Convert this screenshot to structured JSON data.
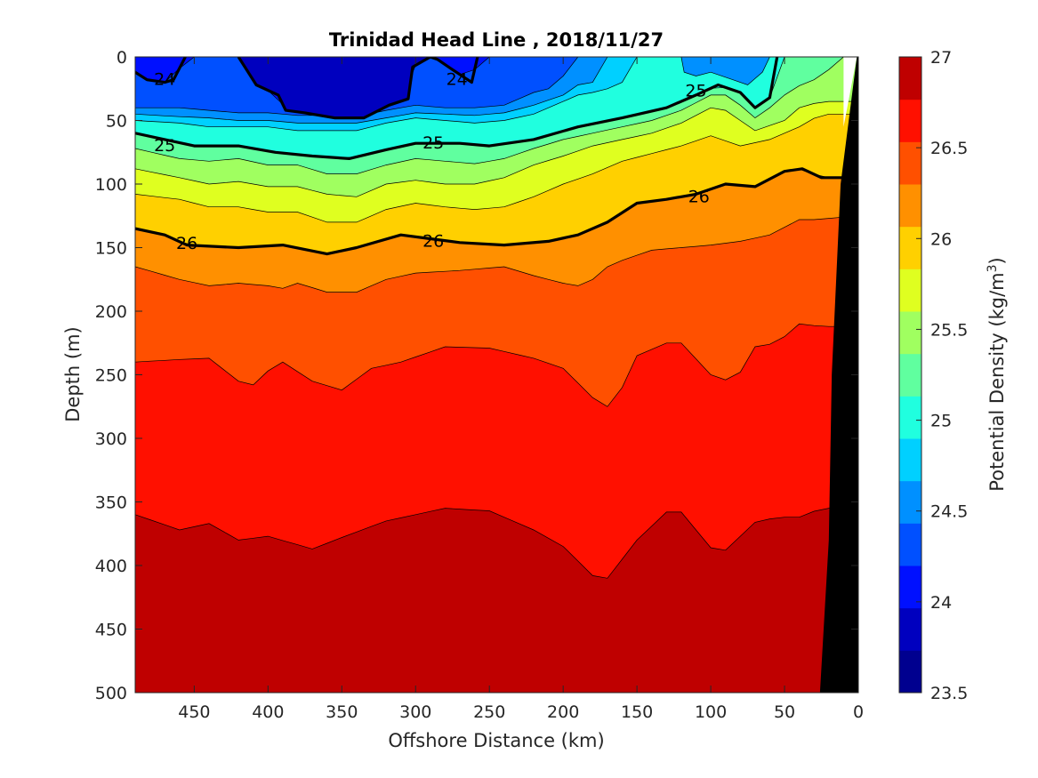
{
  "chart_data": {
    "type": "contour",
    "title": "Trinidad Head Line , 2018/11/27",
    "xlabel": "Offshore Distance (km)",
    "ylabel": "Depth (m)",
    "xlim": [
      490,
      0
    ],
    "ylim": [
      0,
      500
    ],
    "x_reversed": true,
    "y_reversed": true,
    "xticks": [
      "450",
      "400",
      "350",
      "300",
      "250",
      "200",
      "150",
      "100",
      "50",
      "0"
    ],
    "yticks": [
      "0",
      "50",
      "100",
      "150",
      "200",
      "250",
      "300",
      "350",
      "400",
      "450",
      "500"
    ],
    "colorbar": {
      "label_prefix": "Potential Density (kg/m",
      "label_sup": "3",
      "label_suffix": ")",
      "range": [
        23.5,
        27
      ],
      "tick_labels": [
        "27",
        "26.5",
        "26",
        "25.5",
        "25",
        "24.5",
        "24",
        "23.5"
      ],
      "levels": [
        23.5,
        23.75,
        24.0,
        24.25,
        24.5,
        24.75,
        25.0,
        25.25,
        25.5,
        25.75,
        26.0,
        26.25,
        26.5,
        26.75,
        27.0
      ],
      "colors": [
        "#00008f",
        "#0000bf",
        "#0010ff",
        "#0050ff",
        "#0090ff",
        "#00d0ff",
        "#20ffdf",
        "#60ff9f",
        "#a0ff60",
        "#dfff20",
        "#ffd000",
        "#ff9000",
        "#ff5000",
        "#ff1000",
        "#bf0000"
      ]
    },
    "contour_labels": [
      {
        "text": "24",
        "x": 470,
        "y": 18
      },
      {
        "text": "24",
        "x": 272,
        "y": 18
      },
      {
        "text": "25",
        "x": 470,
        "y": 70
      },
      {
        "text": "25",
        "x": 288,
        "y": 68
      },
      {
        "text": "25",
        "x": 110,
        "y": 27
      },
      {
        "text": "26",
        "x": 455,
        "y": 147
      },
      {
        "text": "26",
        "x": 288,
        "y": 145
      },
      {
        "text": "26",
        "x": 108,
        "y": 110
      }
    ],
    "isopycnals": {
      "24": {
        "segments": [
          [
            [
              490,
              12
            ],
            [
              482,
              18
            ],
            [
              470,
              20
            ],
            [
              464,
              18
            ],
            [
              456,
              0
            ]
          ],
          [
            [
              420,
              0
            ],
            [
              408,
              22
            ],
            [
              393,
              30
            ],
            [
              388,
              42
            ],
            [
              375,
              44
            ],
            [
              355,
              48
            ],
            [
              335,
              48
            ],
            [
              318,
              38
            ],
            [
              305,
              33
            ],
            [
              302,
              8
            ],
            [
              290,
              0
            ],
            [
              285,
              2
            ],
            [
              275,
              10
            ],
            [
              262,
              20
            ],
            [
              258,
              0
            ]
          ]
        ]
      },
      "25": {
        "segments": [
          [
            [
              490,
              60
            ],
            [
              470,
              65
            ],
            [
              450,
              70
            ],
            [
              420,
              70
            ],
            [
              395,
              75
            ],
            [
              370,
              78
            ],
            [
              345,
              80
            ],
            [
              320,
              73
            ],
            [
              300,
              68
            ],
            [
              270,
              68
            ],
            [
              250,
              70
            ],
            [
              220,
              65
            ],
            [
              190,
              55
            ],
            [
              160,
              48
            ],
            [
              130,
              40
            ],
            [
              110,
              30
            ],
            [
              95,
              22
            ],
            [
              80,
              28
            ],
            [
              70,
              40
            ],
            [
              60,
              32
            ],
            [
              55,
              0
            ]
          ]
        ]
      },
      "26": {
        "segments": [
          [
            [
              490,
              135
            ],
            [
              470,
              140
            ],
            [
              455,
              148
            ],
            [
              420,
              150
            ],
            [
              390,
              148
            ],
            [
              360,
              155
            ],
            [
              340,
              150
            ],
            [
              310,
              140
            ],
            [
              290,
              143
            ],
            [
              270,
              146
            ],
            [
              240,
              148
            ],
            [
              210,
              145
            ],
            [
              190,
              140
            ],
            [
              170,
              130
            ],
            [
              150,
              115
            ],
            [
              130,
              112
            ],
            [
              110,
              108
            ],
            [
              90,
              100
            ],
            [
              70,
              102
            ],
            [
              50,
              90
            ],
            [
              38,
              88
            ],
            [
              25,
              95
            ],
            [
              10,
              95
            ]
          ]
        ]
      }
    },
    "land_label": ""
  }
}
